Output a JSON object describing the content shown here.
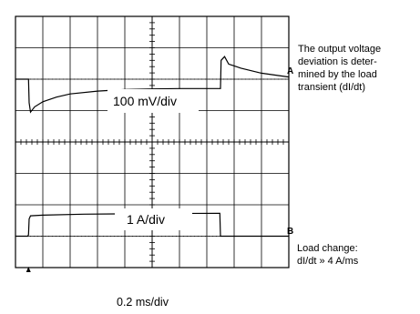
{
  "chart_data": {
    "type": "line",
    "title": "",
    "xlabel": "0.2 ms/div",
    "grid": true,
    "x_range": [
      0,
      2.0
    ],
    "x_unit": "ms",
    "channel_markers": [
      "A",
      "B"
    ],
    "series": [
      {
        "scale_label": "100 mV/div",
        "points": [
          [
            0.0,
            0.0
          ],
          [
            0.095,
            0.0
          ],
          [
            0.1,
            -75
          ],
          [
            0.11,
            -105
          ],
          [
            0.14,
            -88
          ],
          [
            0.2,
            -72
          ],
          [
            0.3,
            -57
          ],
          [
            0.4,
            -47
          ],
          [
            0.6,
            -38
          ],
          [
            0.8,
            -33
          ],
          [
            1.0,
            -31
          ],
          [
            1.2,
            -30
          ],
          [
            1.5,
            -30
          ],
          [
            1.505,
            60
          ],
          [
            1.53,
            72
          ],
          [
            1.56,
            48
          ],
          [
            1.65,
            35
          ],
          [
            1.8,
            19
          ],
          [
            2.0,
            7
          ]
        ]
      },
      {
        "scale_label": "1 A/div",
        "points": [
          [
            0.0,
            0.0
          ],
          [
            0.09,
            0.0
          ],
          [
            0.095,
            0.05
          ],
          [
            0.1,
            0.55
          ],
          [
            0.11,
            0.65
          ],
          [
            0.2,
            0.67
          ],
          [
            0.5,
            0.7
          ],
          [
            1.0,
            0.72
          ],
          [
            1.495,
            0.73
          ],
          [
            1.5,
            0.0
          ],
          [
            2.0,
            0.0
          ]
        ]
      }
    ]
  },
  "annotations": {
    "top": "The output voltage\ndeviation is deter-\nmined by the load\ntransient (dI/dt)",
    "bottom": "Load change:\ndI/dt » 4 A/ms"
  }
}
